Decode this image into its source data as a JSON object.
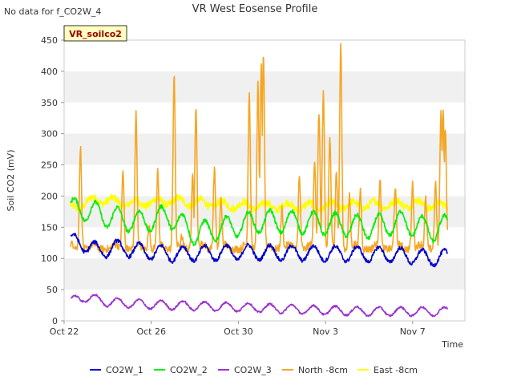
{
  "chart_data": {
    "type": "line",
    "title": "VR West Eosense Profile",
    "corner_note": "No data for f_CO2W_4",
    "badge": "VR_soilco2",
    "xlabel": "Time",
    "ylabel": "Soil CO2 (mV)",
    "ylim": [
      0,
      450
    ],
    "yticks": [
      0,
      50,
      100,
      150,
      200,
      250,
      300,
      350,
      400,
      450
    ],
    "xlim_days": [
      0,
      18.4
    ],
    "xticks": [
      {
        "label": "Oct 22",
        "day": 0
      },
      {
        "label": "Oct 26",
        "day": 4
      },
      {
        "label": "Oct 30",
        "day": 8
      },
      {
        "label": "Nov 3",
        "day": 12
      },
      {
        "label": "Nov 7",
        "day": 16
      }
    ],
    "grid": "horizontal bands",
    "legend": "bottom",
    "series": [
      {
        "name": "CO2W_1",
        "color": "#0000cc",
        "pattern": "diurnal",
        "range": [
          0.3,
          17.6
        ],
        "base": 110,
        "amp": 12,
        "noise": 3,
        "anchors": [
          [
            0.3,
            128
          ],
          [
            1.2,
            120
          ],
          [
            1.6,
            110
          ],
          [
            2.2,
            118
          ],
          [
            3.5,
            112
          ],
          [
            5,
            107
          ],
          [
            8,
            110
          ],
          [
            12,
            108
          ],
          [
            15,
            106
          ],
          [
            17.2,
            100
          ],
          [
            17.6,
            102
          ]
        ]
      },
      {
        "name": "CO2W_2",
        "color": "#00ee00",
        "pattern": "diurnal",
        "range": [
          0.3,
          17.6
        ],
        "base": 150,
        "amp": 18,
        "noise": 3,
        "anchors": [
          [
            0.3,
            178
          ],
          [
            0.8,
            180
          ],
          [
            1.5,
            172
          ],
          [
            2.3,
            165
          ],
          [
            3.5,
            158
          ],
          [
            4.8,
            168
          ],
          [
            6,
            140
          ],
          [
            7.5,
            150
          ],
          [
            9,
            160
          ],
          [
            11,
            158
          ],
          [
            12.5,
            155
          ],
          [
            14,
            150
          ],
          [
            15.5,
            158
          ],
          [
            17,
            145
          ],
          [
            17.6,
            153
          ]
        ]
      },
      {
        "name": "CO2W_3",
        "color": "#9933cc",
        "pattern": "diurnal",
        "range": [
          0.3,
          17.6
        ],
        "base": 25,
        "amp": 7,
        "noise": 1.5,
        "anchors": [
          [
            0.3,
            32
          ],
          [
            1,
            38
          ],
          [
            2,
            30
          ],
          [
            4,
            26
          ],
          [
            6,
            24
          ],
          [
            8,
            22
          ],
          [
            11,
            18
          ],
          [
            14,
            15
          ],
          [
            17.6,
            15
          ]
        ]
      },
      {
        "name": "North -8cm",
        "color": "#f5a623",
        "pattern": "spiky",
        "range": [
          0.3,
          17.6
        ],
        "base": 115,
        "amp": 8,
        "noise": 6,
        "spikes": [
          [
            0.75,
            278
          ],
          [
            2.7,
            240
          ],
          [
            3.3,
            332
          ],
          [
            3.9,
            150
          ],
          [
            4.3,
            242
          ],
          [
            5.05,
            398
          ],
          [
            5.4,
            135
          ],
          [
            5.9,
            230
          ],
          [
            6.05,
            344
          ],
          [
            6.9,
            245
          ],
          [
            7.2,
            195
          ],
          [
            8.5,
            367
          ],
          [
            8.9,
            380
          ],
          [
            9.05,
            412
          ],
          [
            9.15,
            423
          ],
          [
            10,
            180
          ],
          [
            10.8,
            230
          ],
          [
            11.5,
            260
          ],
          [
            11.7,
            335
          ],
          [
            11.9,
            365
          ],
          [
            12.2,
            295
          ],
          [
            12.5,
            240
          ],
          [
            12.7,
            444
          ],
          [
            13.1,
            200
          ],
          [
            13.6,
            210
          ],
          [
            14.5,
            228
          ],
          [
            15.2,
            215
          ],
          [
            16,
            220
          ],
          [
            16.6,
            195
          ],
          [
            17.05,
            220
          ],
          [
            17.3,
            335
          ],
          [
            17.4,
            340
          ],
          [
            17.5,
            310
          ]
        ]
      },
      {
        "name": "East -8cm",
        "color": "#ffff00",
        "pattern": "flat",
        "range": [
          0.3,
          17.6
        ],
        "base": 185,
        "amp": 6,
        "noise": 6,
        "anchors": [
          [
            0.3,
            180
          ],
          [
            1.5,
            195
          ],
          [
            3,
            188
          ],
          [
            5,
            192
          ],
          [
            8,
            185
          ],
          [
            11,
            183
          ],
          [
            14,
            186
          ],
          [
            16,
            188
          ],
          [
            17.6,
            183
          ]
        ]
      }
    ]
  }
}
